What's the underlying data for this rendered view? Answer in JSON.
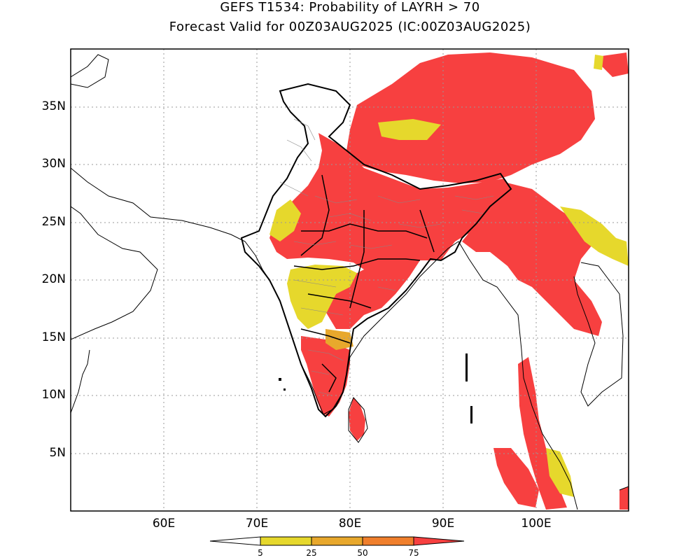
{
  "title": {
    "line1": "GEFS T1534: Probability of LAYRH > 70",
    "line2": "Forecast Valid for 00Z03AUG2025 (IC:00Z03AUG2025)"
  },
  "axes": {
    "lat_ticks": [
      "35N",
      "30N",
      "25N",
      "20N",
      "15N",
      "10N",
      "5N"
    ],
    "lon_ticks": [
      "60E",
      "70E",
      "80E",
      "90E",
      "100E"
    ],
    "lon_range": [
      50,
      110
    ],
    "lat_range": [
      0,
      39.5
    ],
    "gridlines": true
  },
  "colorbar": {
    "labels": [
      "5",
      "25",
      "50",
      "75"
    ],
    "colors": [
      "#ffffff",
      "#e6d82c",
      "#e8a82c",
      "#f07f2c",
      "#f74040"
    ]
  },
  "colors": {
    "very_high": "#f74040",
    "high": "#f07f2c",
    "medium": "#e8a82c",
    "low": "#e6d82c",
    "none": "#ffffff"
  }
}
